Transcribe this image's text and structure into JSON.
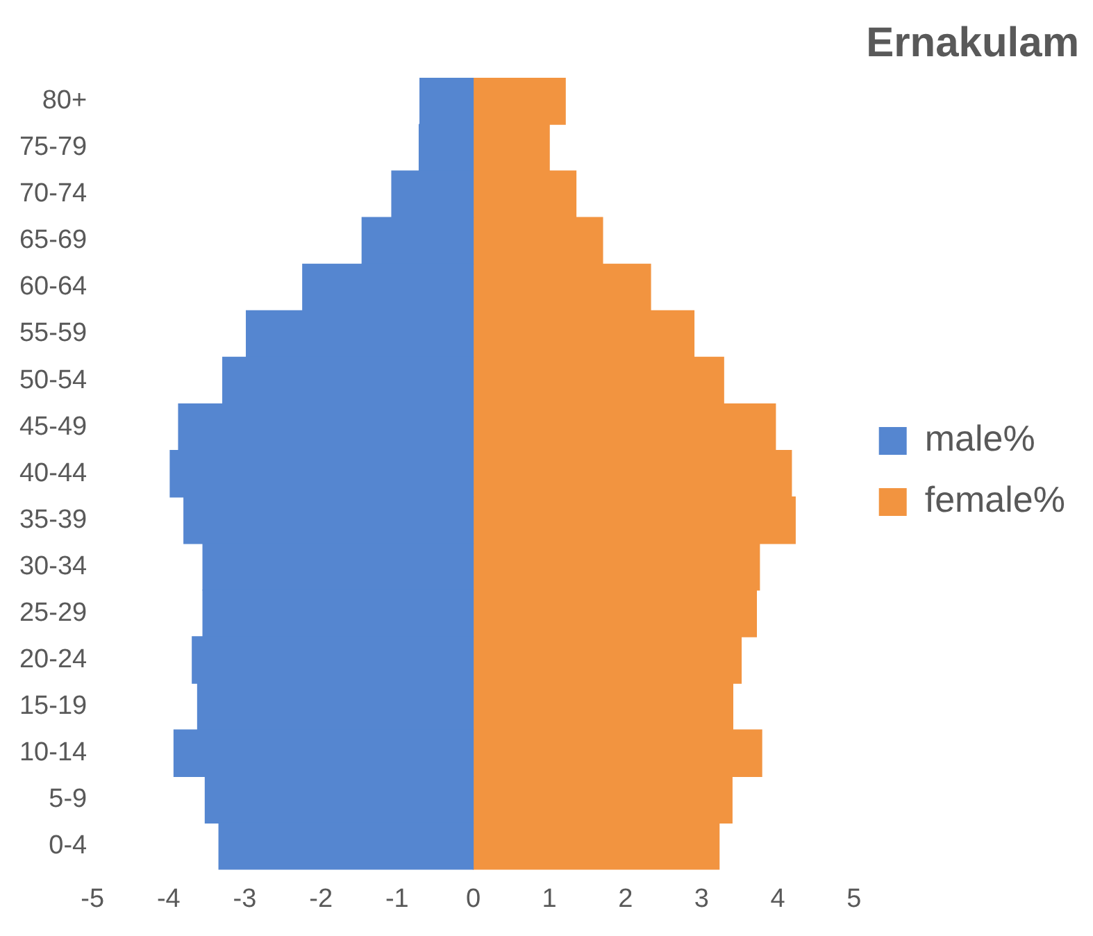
{
  "chart_data": {
    "type": "bar",
    "orientation": "horizontal",
    "stacked": true,
    "title": "Ernakulam",
    "categories": [
      "80+",
      "75-79",
      "70-74",
      "65-69",
      "60-64",
      "55-59",
      "50-54",
      "45-49",
      "40-44",
      "35-39",
      "30-34",
      "25-29",
      "20-24",
      "15-19",
      "10-14",
      "5-9",
      "0-4"
    ],
    "series": [
      {
        "name": "male%",
        "color": "#5586d0",
        "values": [
          -0.7,
          -0.71,
          -1.07,
          -1.46,
          -2.24,
          -2.98,
          -3.29,
          -3.87,
          -3.98,
          -3.8,
          -3.55,
          -3.55,
          -3.69,
          -3.62,
          -3.93,
          -3.52,
          -3.34
        ]
      },
      {
        "name": "female%",
        "color": "#f29440",
        "values": [
          1.21,
          1.0,
          1.35,
          1.7,
          2.33,
          2.9,
          3.29,
          3.97,
          4.18,
          4.23,
          3.76,
          3.72,
          3.52,
          3.41,
          3.79,
          3.4,
          3.23
        ]
      }
    ],
    "xlim": [
      -5,
      5
    ],
    "xticks": [
      -5,
      -4,
      -3,
      -2,
      -1,
      0,
      1,
      2,
      3,
      4,
      5
    ],
    "grid": false,
    "legend": "right"
  }
}
